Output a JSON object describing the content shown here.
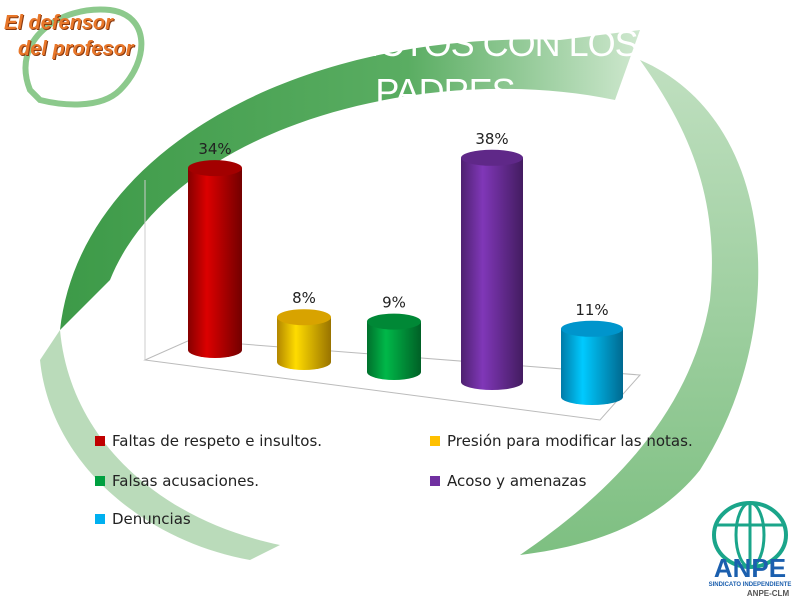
{
  "brand": {
    "line1": "El defensor",
    "line2": "del profesor"
  },
  "logo": {
    "name": "ANPE",
    "subtitle": "SINDICATO INDEPENDIENTE",
    "region": "ANPE-CLM"
  },
  "chart_data": {
    "type": "bar",
    "style": "3d-cylinder",
    "title": "CONFLICTOS CON LOS PADRES",
    "categories": [
      "Faltas de respeto e insultos.",
      "Presión para modificar las notas.",
      "Falsas acusaciones.",
      "Acoso y amenazas",
      "Denuncias"
    ],
    "values": [
      34,
      8,
      9,
      38,
      11
    ],
    "data_labels": [
      "34%",
      "8%",
      "9%",
      "38%",
      "11%"
    ],
    "colors": [
      "#c00000",
      "#ffc000",
      "#00a040",
      "#7030a0",
      "#00b0f0"
    ],
    "legend_placement": "bottom",
    "grid": false
  }
}
